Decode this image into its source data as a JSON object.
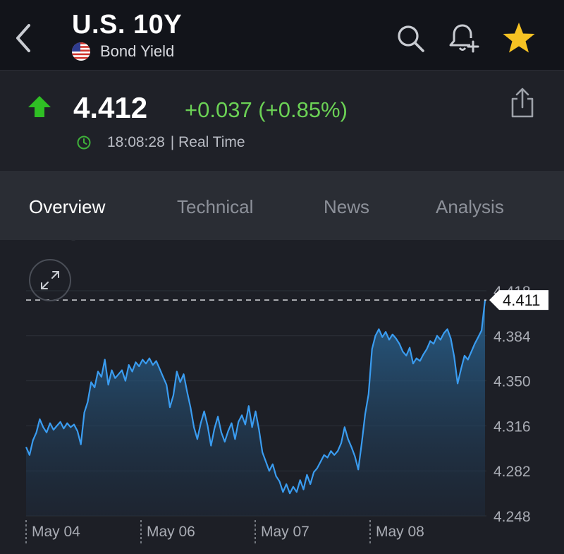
{
  "header": {
    "title": "U.S. 10Y",
    "subtitle": "Bond Yield",
    "favorite_color": "#f6c223"
  },
  "quote": {
    "price": "4.412",
    "change": "+0.037 (+0.85%)",
    "time": "18:08:28",
    "time_label": "| Real Time",
    "direction": "up",
    "up_color": "#6bd155"
  },
  "tabs": [
    {
      "label": "Overview",
      "active": true
    },
    {
      "label": "Technical",
      "active": false
    },
    {
      "label": "News",
      "active": false
    },
    {
      "label": "Analysis",
      "active": false
    }
  ],
  "chart_data": {
    "type": "area",
    "y_ticks": [
      "4.418",
      "4.384",
      "4.350",
      "4.316",
      "4.282",
      "4.248"
    ],
    "ylim": [
      4.248,
      4.418
    ],
    "x_tick_labels": [
      "May 04",
      "May 06",
      "May 07",
      "May 08"
    ],
    "current_value_label": "4.411",
    "current_value": 4.411,
    "line_color": "#3a9cf0",
    "grid": true,
    "values": [
      4.3,
      4.294,
      4.305,
      4.311,
      4.321,
      4.315,
      4.311,
      4.318,
      4.313,
      4.316,
      4.319,
      4.314,
      4.318,
      4.315,
      4.317,
      4.312,
      4.302,
      4.326,
      4.334,
      4.349,
      4.345,
      4.357,
      4.353,
      4.366,
      4.347,
      4.358,
      4.352,
      4.355,
      4.358,
      4.35,
      4.362,
      4.357,
      4.364,
      4.361,
      4.366,
      4.363,
      4.367,
      4.362,
      4.365,
      4.359,
      4.353,
      4.347,
      4.33,
      4.339,
      4.357,
      4.349,
      4.355,
      4.342,
      4.33,
      4.315,
      4.306,
      4.318,
      4.327,
      4.316,
      4.301,
      4.314,
      4.323,
      4.311,
      4.304,
      4.312,
      4.318,
      4.306,
      4.319,
      4.324,
      4.317,
      4.331,
      4.315,
      4.327,
      4.313,
      4.296,
      4.289,
      4.282,
      4.287,
      4.278,
      4.274,
      4.266,
      4.272,
      4.265,
      4.27,
      4.266,
      4.275,
      4.268,
      4.279,
      4.272,
      4.281,
      4.284,
      4.289,
      4.294,
      4.292,
      4.297,
      4.294,
      4.297,
      4.303,
      4.315,
      4.306,
      4.3,
      4.293,
      4.283,
      4.303,
      4.325,
      4.34,
      4.374,
      4.384,
      4.389,
      4.383,
      4.387,
      4.381,
      4.385,
      4.382,
      4.378,
      4.372,
      4.369,
      4.375,
      4.363,
      4.367,
      4.365,
      4.37,
      4.374,
      4.38,
      4.378,
      4.384,
      4.381,
      4.386,
      4.389,
      4.382,
      4.368,
      4.348,
      4.359,
      4.369,
      4.366,
      4.372,
      4.378,
      4.383,
      4.388,
      4.411
    ]
  }
}
